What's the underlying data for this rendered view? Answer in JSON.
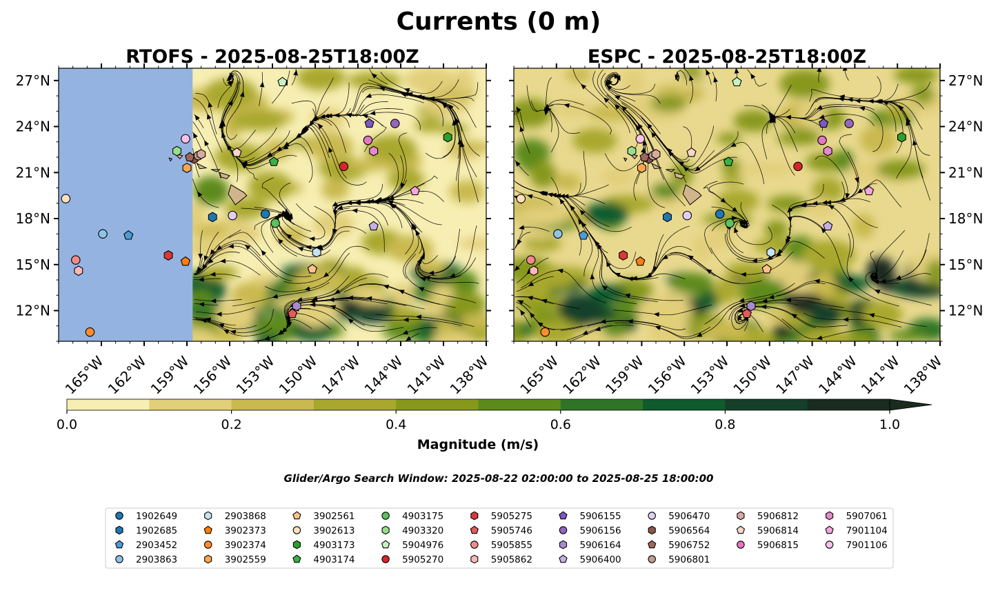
{
  "title": "Currents (0 m)",
  "panels": [
    {
      "title": "RTOFS - 2025-08-25T18:00Z",
      "model": "RTOFS"
    },
    {
      "title": "ESPC - 2025-08-25T18:00Z",
      "model": "ESPC"
    }
  ],
  "colorbar": {
    "label": "Magnitude (m/s)",
    "ticks": [
      "0.0",
      "0.2",
      "0.4",
      "0.6",
      "0.8",
      "1.0"
    ],
    "levels": [
      0,
      0.1,
      0.2,
      0.3,
      0.4,
      0.5,
      0.6,
      0.7,
      0.8,
      0.9,
      1.0
    ],
    "colors": [
      "#f7eeb3",
      "#e2cf7a",
      "#c9b94f",
      "#a9a82e",
      "#87981a",
      "#5d8a1c",
      "#2f7426",
      "#0f5b2e",
      "#163f29",
      "#1a2b20"
    ],
    "extend": "max"
  },
  "search_window": "Glider/Argo Search Window: 2025-08-22 02:00:00 to 2025-08-25 18:00:00",
  "chart_data": {
    "type": "map",
    "region": "Hawaii",
    "xlim": [
      -168,
      -138
    ],
    "ylim": [
      10,
      27.8
    ],
    "lon_ticks": [
      "165°W",
      "162°W",
      "159°W",
      "156°W",
      "153°W",
      "150°W",
      "147°W",
      "144°W",
      "141°W",
      "138°W"
    ],
    "lon_values": [
      -165,
      -162,
      -159,
      -156,
      -153,
      -150,
      -147,
      -144,
      -141,
      -138
    ],
    "lat_ticks": [
      "12°N",
      "15°N",
      "18°N",
      "21°N",
      "24°N",
      "27°N"
    ],
    "lat_values": [
      12,
      15,
      18,
      21,
      24,
      27
    ],
    "rtofs_domain_west_edge": -158.6,
    "floats": [
      {
        "id": "1902649",
        "marker": "circle",
        "color": "#1f77b4",
        "lon": -153.5,
        "lat": 18.3
      },
      {
        "id": "1902685",
        "marker": "hexagon",
        "color": "#1f77b4",
        "lon": -157.2,
        "lat": 18.1
      },
      {
        "id": "2903452",
        "marker": "pentagon",
        "color": "#4c9bd6",
        "lon": -163.1,
        "lat": 16.9
      },
      {
        "id": "2903863",
        "marker": "circle",
        "color": "#8fc3e8",
        "lon": -164.9,
        "lat": 17.0
      },
      {
        "id": "2903868",
        "marker": "hexagon",
        "color": "#c6e2f5",
        "lon": -149.9,
        "lat": 15.8
      },
      {
        "id": "3902373",
        "marker": "pentagon",
        "color": "#ff7f0e",
        "lon": -159.1,
        "lat": 15.2
      },
      {
        "id": "3902374",
        "marker": "circle",
        "color": "#ff8c2e",
        "lon": -165.8,
        "lat": 10.6
      },
      {
        "id": "3902559",
        "marker": "hexagon",
        "color": "#ffa64d",
        "lon": -159.0,
        "lat": 21.3
      },
      {
        "id": "3902561",
        "marker": "pentagon",
        "color": "#ffc28c",
        "lon": -150.2,
        "lat": 14.7
      },
      {
        "id": "3902613",
        "marker": "circle",
        "color": "#ffe0bf",
        "lon": -167.5,
        "lat": 19.3
      },
      {
        "id": "4903173",
        "marker": "hexagon",
        "color": "#2ca02c",
        "lon": -140.7,
        "lat": 23.3
      },
      {
        "id": "4903174",
        "marker": "pentagon",
        "color": "#3cb043",
        "lon": -152.9,
        "lat": 21.7
      },
      {
        "id": "4903175",
        "marker": "circle",
        "color": "#5cc25c",
        "lon": -152.8,
        "lat": 17.7
      },
      {
        "id": "4903320",
        "marker": "hexagon",
        "color": "#98df8a",
        "lon": -159.7,
        "lat": 22.4
      },
      {
        "id": "5904976",
        "marker": "pentagon",
        "color": "#c9f2c2",
        "lon": -152.3,
        "lat": 26.9
      },
      {
        "id": "5905270",
        "marker": "circle",
        "color": "#d62728",
        "lon": -148.0,
        "lat": 21.4
      },
      {
        "id": "5905275",
        "marker": "hexagon",
        "color": "#d9383a",
        "lon": -160.3,
        "lat": 15.6
      },
      {
        "id": "5905746",
        "marker": "pentagon",
        "color": "#e35b5d",
        "lon": -151.6,
        "lat": 11.8
      },
      {
        "id": "5905855",
        "marker": "circle",
        "color": "#f08a8c",
        "lon": -166.8,
        "lat": 15.3
      },
      {
        "id": "5905862",
        "marker": "hexagon",
        "color": "#f8b8b9",
        "lon": -166.6,
        "lat": 14.6
      },
      {
        "id": "5906155",
        "marker": "pentagon",
        "color": "#7e57c2",
        "lon": -146.2,
        "lat": 24.2
      },
      {
        "id": "5906156",
        "marker": "circle",
        "color": "#9467bd",
        "lon": -144.4,
        "lat": 24.2
      },
      {
        "id": "5906164",
        "marker": "hexagon",
        "color": "#a98ad0",
        "lon": -151.3,
        "lat": 12.3
      },
      {
        "id": "5906400",
        "marker": "pentagon",
        "color": "#c5b0e6",
        "lon": -145.9,
        "lat": 17.5
      },
      {
        "id": "5906470",
        "marker": "circle",
        "color": "#e0cff4",
        "lon": -155.8,
        "lat": 18.2
      },
      {
        "id": "5906564",
        "marker": "hexagon",
        "color": "#8c564b",
        "lon": -158.5,
        "lat": 21.9
      },
      {
        "id": "5906752",
        "marker": "pentagon",
        "color": "#a0665a",
        "lon": -158.8,
        "lat": 22.0
      },
      {
        "id": "5906801",
        "marker": "circle",
        "color": "#c49c94",
        "lon": -158.2,
        "lat": 22.1
      },
      {
        "id": "5906812",
        "marker": "hexagon",
        "color": "#d8aaa2",
        "lon": -158.0,
        "lat": 22.2
      },
      {
        "id": "5906814",
        "marker": "pentagon",
        "color": "#f9d7c8",
        "lon": -155.5,
        "lat": 22.3
      },
      {
        "id": "5906815",
        "marker": "circle",
        "color": "#e377c2",
        "lon": -146.3,
        "lat": 23.1
      },
      {
        "id": "5907061",
        "marker": "hexagon",
        "color": "#e68ad0",
        "lon": -145.9,
        "lat": 22.4
      },
      {
        "id": "7901104",
        "marker": "pentagon",
        "color": "#f5a6dc",
        "lon": -143.0,
        "lat": 19.8
      },
      {
        "id": "7901106",
        "marker": "circle",
        "color": "#f9c2e8",
        "lon": -159.1,
        "lat": 23.2
      }
    ]
  },
  "legend": {
    "columns": [
      [
        "1902649",
        "1902685",
        "2903452",
        "2903863"
      ],
      [
        "2903868",
        "3902373",
        "3902374",
        "3902559"
      ],
      [
        "3902561",
        "3902613",
        "4903173",
        "4903174"
      ],
      [
        "4903175",
        "4903320",
        "5904976",
        "5905270"
      ],
      [
        "5905275",
        "5905746",
        "5905855",
        "5905862"
      ],
      [
        "5906155",
        "5906156",
        "5906164",
        "5906400"
      ],
      [
        "5906470",
        "5906564",
        "5906752",
        "5906801"
      ],
      [
        "5906812",
        "5906814",
        "5906815"
      ],
      [
        "5907061",
        "7901104",
        "7901106"
      ]
    ]
  },
  "colors": {
    "land": "#d2b48c",
    "outside_domain": "#94b3e0",
    "coastline": "#000000",
    "streamlines": "#000000"
  }
}
